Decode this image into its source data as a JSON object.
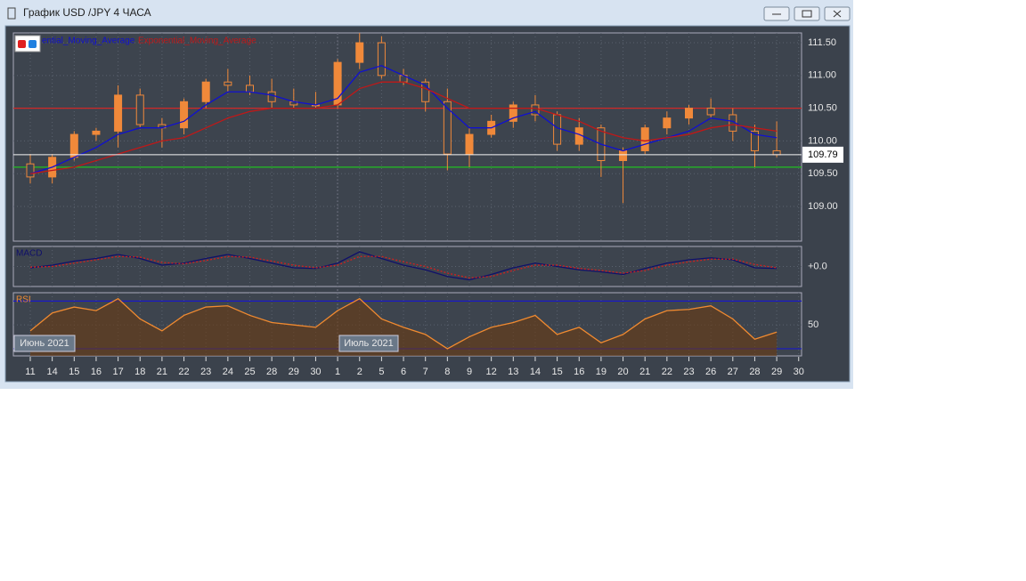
{
  "window": {
    "title": "График USD /JPY  4 ЧАСА"
  },
  "month_labels": [
    "Июнь 2021",
    "Июль 2021"
  ],
  "chart_data": [
    {
      "type": "candlestick",
      "categories": [
        "11",
        "14",
        "15",
        "16",
        "17",
        "18",
        "21",
        "22",
        "23",
        "24",
        "25",
        "28",
        "29",
        "30",
        "1",
        "2",
        "5",
        "6",
        "7",
        "8",
        "9",
        "12",
        "13",
        "14",
        "15",
        "16",
        "19",
        "20",
        "21",
        "22",
        "23",
        "26",
        "27",
        "28",
        "29",
        "30"
      ],
      "open": [
        109.65,
        109.45,
        109.75,
        110.1,
        110.15,
        110.7,
        110.25,
        110.2,
        110.6,
        110.9,
        110.85,
        110.75,
        110.6,
        110.55,
        110.55,
        111.2,
        111.5,
        111.0,
        110.9,
        110.6,
        109.8,
        110.1,
        110.3,
        110.55,
        110.4,
        109.95,
        110.2,
        109.7,
        109.85,
        110.2,
        110.35,
        110.5,
        110.4,
        110.15,
        109.85,
        null
      ],
      "high": [
        109.8,
        109.8,
        110.15,
        110.2,
        110.85,
        110.8,
        110.35,
        110.65,
        110.95,
        111.1,
        111.0,
        110.95,
        110.8,
        110.75,
        111.25,
        111.65,
        111.6,
        111.1,
        110.95,
        110.8,
        110.2,
        110.4,
        110.6,
        110.7,
        110.45,
        110.35,
        110.25,
        109.9,
        110.25,
        110.45,
        110.55,
        110.65,
        110.5,
        110.25,
        110.3,
        null
      ],
      "low": [
        109.35,
        109.35,
        109.7,
        110.0,
        109.9,
        110.2,
        109.9,
        110.1,
        110.5,
        110.75,
        110.7,
        110.5,
        110.5,
        110.5,
        110.5,
        111.1,
        110.95,
        110.85,
        110.45,
        109.55,
        109.6,
        110.05,
        110.2,
        110.3,
        109.85,
        109.85,
        109.45,
        109.05,
        109.8,
        110.1,
        110.25,
        110.35,
        110.0,
        109.6,
        109.75,
        null
      ],
      "close": [
        109.45,
        109.75,
        110.1,
        110.15,
        110.7,
        110.25,
        110.2,
        110.6,
        110.9,
        110.85,
        110.75,
        110.6,
        110.55,
        110.55,
        111.2,
        111.5,
        111.0,
        110.9,
        110.6,
        109.8,
        110.1,
        110.3,
        110.55,
        110.4,
        109.95,
        110.2,
        109.7,
        109.85,
        110.2,
        110.35,
        110.5,
        110.4,
        110.15,
        109.85,
        109.79,
        null
      ],
      "color": "#f0893a",
      "series": [
        {
          "name": "ential_Moving_Average",
          "color": "#1010d0",
          "values": [
            109.5,
            109.6,
            109.75,
            109.9,
            110.1,
            110.2,
            110.2,
            110.3,
            110.55,
            110.75,
            110.75,
            110.7,
            110.6,
            110.55,
            110.65,
            111.05,
            111.15,
            111.0,
            110.85,
            110.5,
            110.2,
            110.2,
            110.35,
            110.45,
            110.2,
            110.1,
            109.95,
            109.85,
            109.95,
            110.05,
            110.15,
            110.35,
            110.3,
            110.1,
            110.05,
            null
          ]
        },
        {
          "name": "Exponential_Moving_Average",
          "color": "#c01818",
          "values": [
            109.5,
            109.55,
            109.6,
            109.7,
            109.8,
            109.9,
            110.0,
            110.05,
            110.2,
            110.35,
            110.45,
            110.5,
            110.5,
            110.5,
            110.55,
            110.8,
            110.9,
            110.9,
            110.8,
            110.65,
            110.5,
            110.5,
            110.5,
            110.5,
            110.4,
            110.3,
            110.15,
            110.05,
            110.0,
            110.05,
            110.1,
            110.2,
            110.25,
            110.2,
            110.15,
            null
          ]
        }
      ],
      "levels": [
        {
          "value": 110.5,
          "color": "#d02828"
        },
        {
          "value": 109.6,
          "color": "#20c020"
        }
      ],
      "last_price": {
        "value": 109.79,
        "label": "109.79"
      },
      "ylim": [
        108.47,
        111.65
      ],
      "yticks": [
        {
          "value": 111.5,
          "label": "111.50"
        },
        {
          "value": 111.0,
          "label": "111.00"
        },
        {
          "value": 110.5,
          "label": "110.50"
        },
        {
          "value": 110.0,
          "label": "110.00"
        },
        {
          "value": 109.5,
          "label": "109.50"
        },
        {
          "value": 109.0,
          "label": "109.00"
        }
      ],
      "grid": true
    },
    {
      "type": "line",
      "series": [
        {
          "name": "MACD",
          "color": "#10106a",
          "values": [
            -0.02,
            0.02,
            0.08,
            0.12,
            0.18,
            0.12,
            0.02,
            0.05,
            0.12,
            0.18,
            0.12,
            0.05,
            -0.02,
            -0.03,
            0.05,
            0.22,
            0.12,
            0.02,
            -0.05,
            -0.15,
            -0.2,
            -0.12,
            -0.02,
            0.05,
            0.0,
            -0.05,
            -0.08,
            -0.12,
            -0.03,
            0.05,
            0.1,
            0.13,
            0.1,
            -0.02,
            -0.03,
            null
          ]
        },
        {
          "color": "#d02020",
          "dashed": true,
          "values": [
            -0.01,
            0.0,
            0.05,
            0.1,
            0.15,
            0.14,
            0.06,
            0.04,
            0.09,
            0.15,
            0.14,
            0.08,
            0.02,
            -0.02,
            0.02,
            0.15,
            0.15,
            0.07,
            0.0,
            -0.1,
            -0.17,
            -0.15,
            -0.06,
            0.02,
            0.02,
            -0.03,
            -0.06,
            -0.1,
            -0.06,
            0.02,
            0.07,
            0.11,
            0.11,
            0.03,
            -0.02,
            null
          ]
        }
      ],
      "ylim": [
        -0.3,
        0.3
      ],
      "yticks": [
        {
          "value": 0,
          "label": "+0.0"
        }
      ],
      "grid": true
    },
    {
      "type": "line",
      "series": [
        {
          "name": "RSI",
          "color": "#f08a30",
          "fill": true,
          "values": [
            45,
            60,
            65,
            62,
            72,
            55,
            45,
            58,
            65,
            66,
            58,
            52,
            50,
            48,
            62,
            72,
            55,
            48,
            42,
            30,
            40,
            48,
            52,
            58,
            42,
            48,
            35,
            42,
            55,
            62,
            63,
            66,
            55,
            38,
            44,
            null
          ]
        }
      ],
      "levels": [
        {
          "value": 70,
          "color": "#1818c8"
        },
        {
          "value": 30,
          "color": "#1818c8"
        }
      ],
      "ylim": [
        24,
        77
      ],
      "yticks": [
        50
      ],
      "grid": true
    }
  ]
}
